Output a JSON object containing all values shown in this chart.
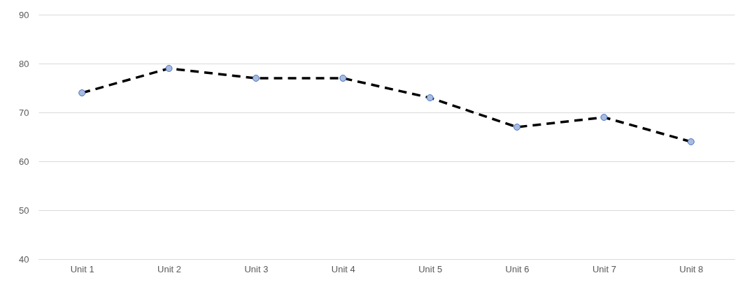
{
  "chart_data": {
    "type": "line",
    "categories": [
      "Unit 1",
      "Unit 2",
      "Unit 3",
      "Unit 4",
      "Unit 5",
      "Unit 6",
      "Unit 7",
      "Unit 8"
    ],
    "series": [
      {
        "color": "#000000",
        "values": [
          74,
          79,
          77,
          77,
          73,
          67,
          69,
          64
        ]
      }
    ],
    "ylim": [
      40,
      90
    ],
    "yticks": [
      40,
      50,
      60,
      70,
      80,
      90
    ],
    "grid": "y",
    "marker": "circle",
    "line_style": "dashed"
  }
}
